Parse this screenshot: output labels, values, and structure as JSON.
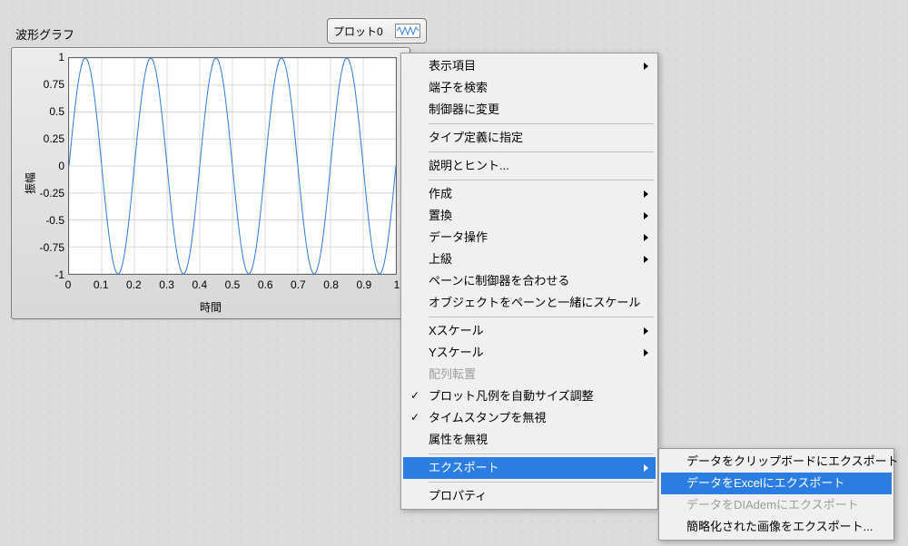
{
  "graph": {
    "title": "波形グラフ",
    "y_label": "振幅",
    "x_label": "時間",
    "legend_label": "プロット0",
    "type": "line",
    "background_color": "#ffffff",
    "grid_color": "#d8d8d8",
    "line_color": "#2b7de1",
    "line_width": 1,
    "xlim": [
      0,
      1
    ],
    "ylim": [
      -1,
      1
    ],
    "xtick_values": [
      0,
      0.1,
      0.2,
      0.3,
      0.4,
      0.5,
      0.6,
      0.7,
      0.8,
      0.9,
      1
    ],
    "xtick_labels": [
      "0",
      "0.1",
      "0.2",
      "0.3",
      "0.4",
      "0.5",
      "0.6",
      "0.7",
      "0.8",
      "0.9",
      "1"
    ],
    "ytick_values": [
      -1,
      -0.75,
      -0.5,
      -0.25,
      0,
      0.25,
      0.5,
      0.75,
      1
    ],
    "ytick_labels": [
      "-1",
      "-0.75",
      "-0.5",
      "-0.25",
      "0",
      "0.25",
      "0.5",
      "0.75",
      "1"
    ],
    "series": {
      "freq_hz": 5,
      "amplitude": 1,
      "n_points": 240
    }
  },
  "menu1": {
    "groups": [
      [
        {
          "label": "表示項目",
          "sub": true
        },
        {
          "label": "端子を検索"
        },
        {
          "label": "制御器に変更"
        }
      ],
      [
        {
          "label": "タイプ定義に指定"
        }
      ],
      [
        {
          "label": "説明とヒント..."
        }
      ],
      [
        {
          "label": "作成",
          "sub": true
        },
        {
          "label": "置換",
          "sub": true
        },
        {
          "label": "データ操作",
          "sub": true
        },
        {
          "label": "上級",
          "sub": true
        },
        {
          "label": "ペーンに制御器を合わせる"
        },
        {
          "label": "オブジェクトをペーンと一緒にスケール"
        }
      ],
      [
        {
          "label": "Xスケール",
          "sub": true
        },
        {
          "label": "Yスケール",
          "sub": true
        },
        {
          "label": "配列転置",
          "disabled": true
        },
        {
          "label": "プロット凡例を自動サイズ調整",
          "check": true
        },
        {
          "label": "タイムスタンプを無視",
          "check": true
        },
        {
          "label": "属性を無視"
        }
      ],
      [
        {
          "label": "エクスポート",
          "sub": true,
          "highlight": true
        }
      ],
      [
        {
          "label": "プロパティ"
        }
      ]
    ]
  },
  "menu2": {
    "items": [
      {
        "label": "データをクリップボードにエクスポート"
      },
      {
        "label": "データをExcelにエクスポート",
        "highlight": true
      },
      {
        "label": "データをDIAdemにエクスポート",
        "disabled": true
      },
      {
        "label": "簡略化された画像をエクスポート..."
      }
    ]
  },
  "colors": {
    "menu_bg": "#f0f0f0",
    "menu_border": "#9a9a9a",
    "highlight": "#2b7de1",
    "disabled": "#9d9d9d"
  }
}
